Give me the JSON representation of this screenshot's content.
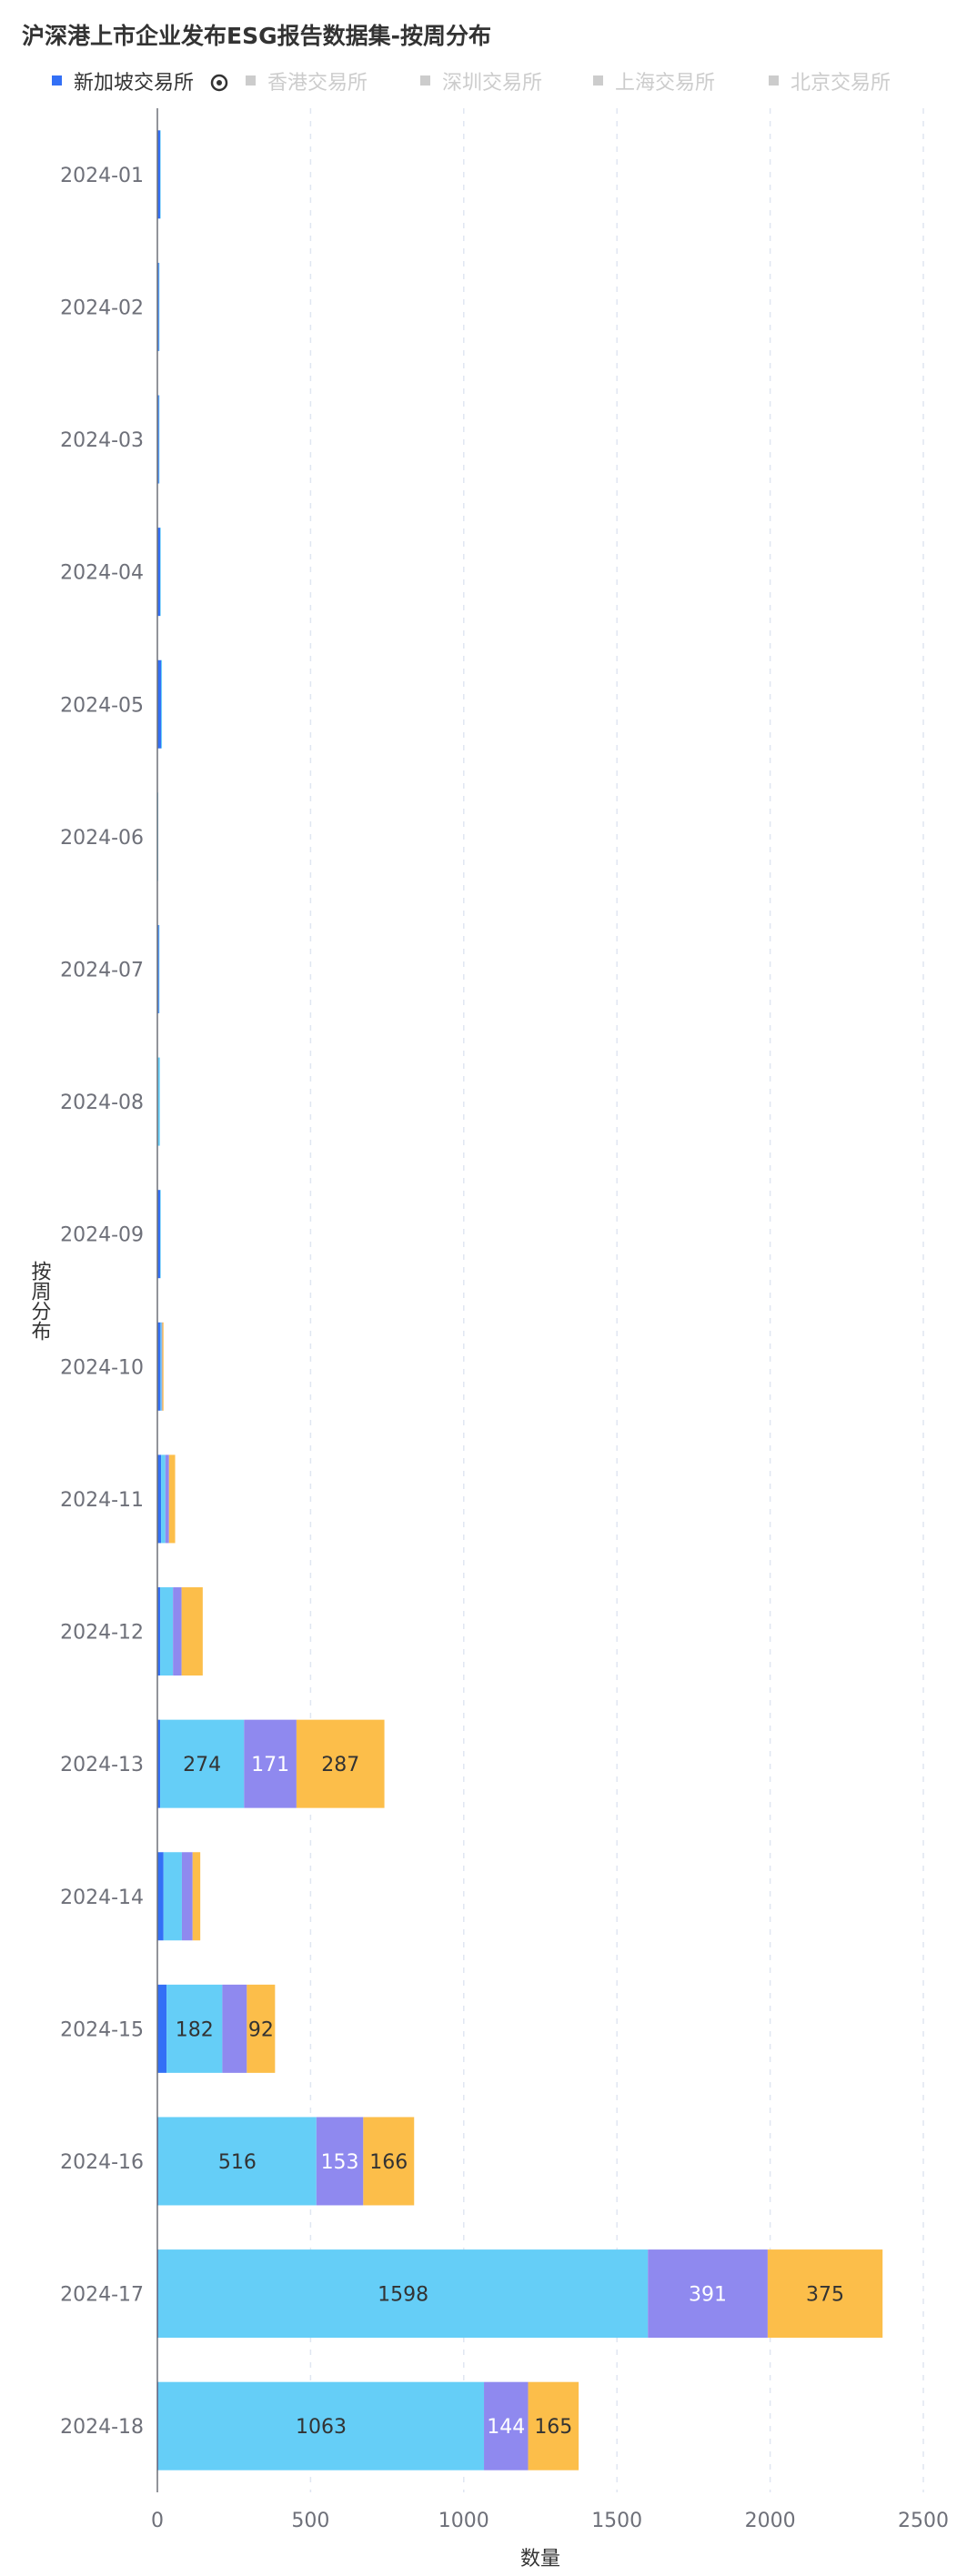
{
  "colors": {
    "sgx": "#3370f6",
    "hkex": "#65cef7",
    "szse": "#8f89ef",
    "sse": "#fcbe4a",
    "bse": "#4ed0a8",
    "legend_inactive": "#cccccc",
    "grid": "#e0e6f1",
    "axis_text": "#6e7079"
  },
  "chart_data": {
    "type": "bar",
    "orientation": "horizontal",
    "stacked": true,
    "title": "沪深港上市企业发布ESG报告数据集-按周分布",
    "xlabel": "数量",
    "ylabel": "按周分布",
    "xlim": [
      0,
      2500
    ],
    "xticks": [
      0,
      500,
      1000,
      1500,
      2000,
      2500
    ],
    "grid": "vertical dashed",
    "legend_position": "top-left",
    "categories": [
      "2024-01",
      "2024-02",
      "2024-03",
      "2024-04",
      "2024-05",
      "2024-06",
      "2024-07",
      "2024-08",
      "2024-09",
      "2024-10",
      "2024-11",
      "2024-12",
      "2024-13",
      "2024-14",
      "2024-15",
      "2024-16",
      "2024-17",
      "2024-18"
    ],
    "series": [
      {
        "name": "新加坡交易所",
        "color_key": "sgx",
        "legend_active": true,
        "values": [
          9,
          5,
          5,
          9,
          12,
          1,
          5,
          2,
          9,
          10,
          12,
          9,
          9,
          20,
          30,
          3,
          3,
          3
        ]
      },
      {
        "name": "香港交易所",
        "color_key": "hkex",
        "legend_active": false,
        "values": [
          1,
          1,
          1,
          2,
          3,
          1,
          1,
          6,
          2,
          4,
          14,
          42,
          274,
          60,
          182,
          516,
          1598,
          1063
        ]
      },
      {
        "name": "深圳交易所",
        "color_key": "szse",
        "legend_active": false,
        "values": [
          0,
          0,
          0,
          0,
          0,
          0,
          0,
          0,
          0,
          2,
          12,
          28,
          171,
          35,
          80,
          153,
          391,
          144
        ]
      },
      {
        "name": "上海交易所",
        "color_key": "sse",
        "legend_active": false,
        "values": [
          0,
          0,
          0,
          0,
          0,
          0,
          0,
          0,
          0,
          4,
          20,
          69,
          287,
          25,
          92,
          166,
          375,
          165
        ]
      },
      {
        "name": "北京交易所",
        "color_key": "bse",
        "legend_active": false,
        "values": [
          0,
          0,
          0,
          0,
          0,
          0,
          0,
          0,
          0,
          0,
          0,
          0,
          0,
          0,
          0,
          0,
          0,
          0
        ]
      }
    ]
  }
}
